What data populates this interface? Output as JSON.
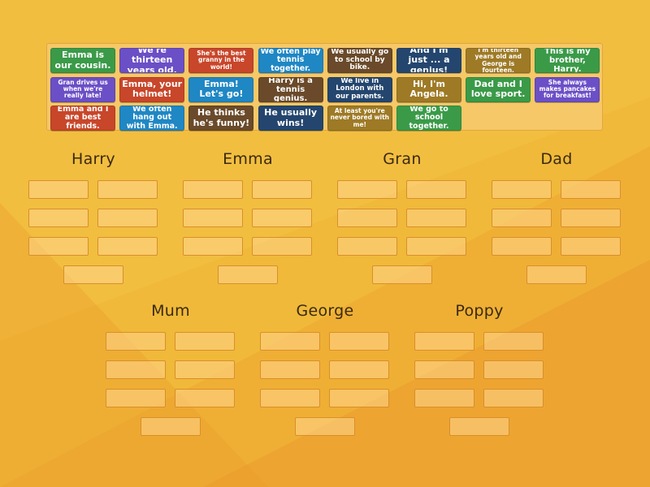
{
  "colors": {
    "green": "#3a9a48",
    "purple": "#6b4fc6",
    "red": "#c8462a",
    "blue": "#1f87c4",
    "brown": "#6a4a2a",
    "navy": "#24466e",
    "olive": "#9e7a26",
    "background": "#f0b93a"
  },
  "cards": [
    {
      "text": "Emma is our cousin.",
      "color": "green",
      "size": 11
    },
    {
      "text": "We're thirteen years old.",
      "color": "purple",
      "size": 11
    },
    {
      "text": "She's the best granny in the world!",
      "color": "red",
      "size": 7.5
    },
    {
      "text": "We often play tennis together.",
      "color": "blue",
      "size": 9.5
    },
    {
      "text": "We usually go to school by bike.",
      "color": "brown",
      "size": 9
    },
    {
      "text": "And I'm just ... a genius!",
      "color": "navy",
      "size": 11
    },
    {
      "text": "I'm thirteen years old and George is fourteen.",
      "color": "olive",
      "size": 7.5
    },
    {
      "text": "This is my brother, Harry.",
      "color": "green",
      "size": 10
    },
    {
      "text": "Gran drives us when we're really late!",
      "color": "purple",
      "size": 7.5
    },
    {
      "text": "Emma, your helmet!",
      "color": "red",
      "size": 11
    },
    {
      "text": "Emma! Let's go!",
      "color": "blue",
      "size": 11
    },
    {
      "text": "Harry is a tennis genius.",
      "color": "brown",
      "size": 10
    },
    {
      "text": "We live in London with our parents.",
      "color": "navy",
      "size": 8.5
    },
    {
      "text": "Hi, I'm Angela.",
      "color": "olive",
      "size": 11
    },
    {
      "text": "Dad and I love sport.",
      "color": "green",
      "size": 11
    },
    {
      "text": "She always makes pancakes for breakfast!",
      "color": "purple",
      "size": 7.5
    },
    {
      "text": "Emma and I are best friends.",
      "color": "red",
      "size": 9.5
    },
    {
      "text": "We often hang out with Emma.",
      "color": "blue",
      "size": 9.5
    },
    {
      "text": "He thinks he's funny!",
      "color": "brown",
      "size": 11
    },
    {
      "text": "He usually wins!",
      "color": "navy",
      "size": 11
    },
    {
      "text": "At least you're never bored with me!",
      "color": "olive",
      "size": 7.5
    },
    {
      "text": "We go to school together.",
      "color": "green",
      "size": 9.5
    }
  ],
  "groups": [
    {
      "name": "Harry",
      "slots": 7
    },
    {
      "name": "Emma",
      "slots": 7
    },
    {
      "name": "Gran",
      "slots": 7
    },
    {
      "name": "Dad",
      "slots": 7
    },
    {
      "name": "Mum",
      "slots": 7
    },
    {
      "name": "George",
      "slots": 7
    },
    {
      "name": "Poppy",
      "slots": 7
    }
  ]
}
